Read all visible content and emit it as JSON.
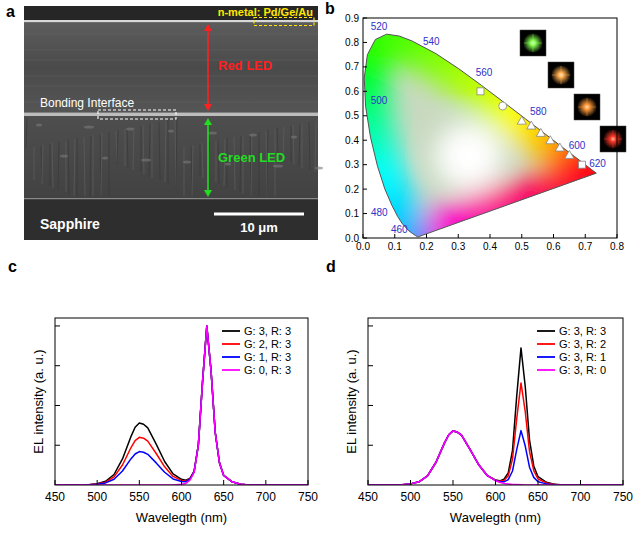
{
  "sem_image": {
    "panel": "a",
    "metal_label": "n-metal: Pd/Ge/Au",
    "red_label": "Red LED",
    "interface_label": "Bonding Interface",
    "green_label": "Green LED",
    "substrate_label": "Sapphire",
    "scale_bar": "10 μm"
  },
  "chart_data": [
    {
      "type": "chromaticity",
      "panel": "b",
      "xlim": [
        0,
        0.8
      ],
      "xticks": [
        {
          "value": 0,
          "label": "0.0"
        },
        0.1,
        0.2,
        0.3,
        0.4,
        0.5,
        0.6,
        0.7,
        0.8
      ],
      "ylim": [
        0,
        0.9
      ],
      "yticks": [
        {
          "value": 0,
          "label": "0.0"
        },
        0.1,
        0.2,
        0.3,
        0.4,
        0.5,
        0.6,
        0.7,
        0.8,
        0.9
      ],
      "locus": {
        "wavelengths": [
          380,
          420,
          440,
          450,
          460,
          470,
          475,
          480,
          485,
          490,
          495,
          500,
          505,
          510,
          515,
          520,
          525,
          530,
          540,
          550,
          560,
          570,
          580,
          590,
          600,
          610,
          620,
          640,
          700
        ],
        "x": [
          0.1741,
          0.1714,
          0.1644,
          0.1566,
          0.144,
          0.1241,
          0.1096,
          0.0913,
          0.0687,
          0.0454,
          0.0235,
          0.0082,
          0.0039,
          0.0139,
          0.0389,
          0.0743,
          0.1142,
          0.1547,
          0.2296,
          0.3016,
          0.3731,
          0.4441,
          0.5125,
          0.5752,
          0.627,
          0.6658,
          0.6915,
          0.719,
          0.7347
        ],
        "y": [
          0.005,
          0.0051,
          0.0109,
          0.0177,
          0.0297,
          0.0578,
          0.0868,
          0.1327,
          0.2007,
          0.295,
          0.4127,
          0.5384,
          0.6548,
          0.7502,
          0.812,
          0.8338,
          0.8262,
          0.8059,
          0.7543,
          0.6923,
          0.6245,
          0.5547,
          0.4866,
          0.4242,
          0.3725,
          0.334,
          0.3083,
          0.2809,
          0.2653
        ],
        "labels": [
          null,
          null,
          null,
          null,
          460,
          null,
          null,
          480,
          null,
          null,
          null,
          500,
          null,
          null,
          null,
          520,
          null,
          null,
          540,
          null,
          560,
          null,
          580,
          null,
          600,
          null,
          620,
          null,
          null
        ]
      },
      "series": [
        {
          "marker": "square",
          "x": [
            0.37,
            0.69
          ],
          "values": [
            0.6,
            0.3
          ]
        },
        {
          "marker": "circle",
          "x": [
            0.44
          ],
          "values": [
            0.54
          ]
        },
        {
          "marker": "triangle",
          "x": [
            0.5,
            0.53,
            0.56,
            0.59,
            0.62,
            0.65
          ],
          "values": [
            0.48,
            0.46,
            0.43,
            0.4,
            0.37,
            0.34
          ]
        }
      ]
    },
    {
      "type": "line",
      "panel": "c",
      "x_label": "Wavelegth (nm)",
      "y_label": "EL intensity (a. u.)",
      "x": [
        450,
        460,
        470,
        480,
        490,
        500,
        510,
        520,
        530,
        540,
        545,
        550,
        555,
        560,
        570,
        580,
        590,
        600,
        605,
        610,
        615,
        620,
        625,
        630,
        635,
        640,
        645,
        650,
        660,
        670,
        680,
        690,
        700,
        720,
        750
      ],
      "xlim": [
        450,
        750
      ],
      "xticks": [
        450,
        500,
        550,
        600,
        650,
        700,
        750
      ],
      "ylim": [
        0,
        1.05
      ],
      "yticks": [
        0.25,
        0.5,
        0.75,
        1.0
      ],
      "tick_labels": "x",
      "legend": "upper right",
      "series": [
        {
          "name": "G: 3, R: 3",
          "color": "#000000",
          "values": [
            0,
            0,
            0,
            0,
            0.002,
            0.008,
            0.023,
            0.066,
            0.164,
            0.304,
            0.363,
            0.39,
            0.382,
            0.359,
            0.257,
            0.148,
            0.07,
            0.036,
            0.03,
            0.042,
            0.088,
            0.254,
            0.654,
            1.0,
            0.72,
            0.33,
            0.14,
            0.06,
            0.02,
            0.005,
            0,
            0,
            0,
            0,
            0
          ]
        },
        {
          "name": "G: 2, R: 3",
          "color": "#ff0000",
          "values": [
            0,
            0,
            0,
            0,
            0.002,
            0.006,
            0.018,
            0.051,
            0.126,
            0.234,
            0.279,
            0.3,
            0.294,
            0.276,
            0.198,
            0.114,
            0.054,
            0.029,
            0.025,
            0.039,
            0.086,
            0.253,
            0.653,
            1.0,
            0.72,
            0.33,
            0.14,
            0.06,
            0.02,
            0.005,
            0,
            0,
            0,
            0,
            0
          ]
        },
        {
          "name": "G: 1, R: 3",
          "color": "#0000ff",
          "values": [
            0,
            0,
            0,
            0,
            0.001,
            0.004,
            0.013,
            0.036,
            0.088,
            0.164,
            0.195,
            0.21,
            0.206,
            0.193,
            0.139,
            0.08,
            0.038,
            0.022,
            0.021,
            0.036,
            0.084,
            0.252,
            0.652,
            1.0,
            0.72,
            0.33,
            0.14,
            0.06,
            0.02,
            0.005,
            0,
            0,
            0,
            0,
            0
          ]
        },
        {
          "name": "G: 0, R: 3",
          "color": "#ff00ff",
          "values": [
            0,
            0,
            0,
            0,
            0,
            0,
            0,
            0,
            0,
            0,
            0,
            0,
            0,
            0,
            0,
            0,
            0,
            0.005,
            0.01,
            0.03,
            0.08,
            0.25,
            0.65,
            1.0,
            0.72,
            0.33,
            0.14,
            0.06,
            0.02,
            0.005,
            0,
            0,
            0,
            0,
            0
          ]
        }
      ]
    },
    {
      "type": "line",
      "panel": "d",
      "x_label": "Wavelegth (nm)",
      "y_label": "EL intensity (a. u.)",
      "x": [
        450,
        460,
        470,
        480,
        490,
        500,
        510,
        520,
        530,
        540,
        545,
        550,
        555,
        560,
        570,
        580,
        590,
        600,
        605,
        610,
        615,
        620,
        625,
        630,
        635,
        640,
        645,
        650,
        660,
        670,
        680,
        690,
        700,
        720,
        750
      ],
      "xlim": [
        450,
        750
      ],
      "xticks": [
        450,
        500,
        550,
        600,
        650,
        700,
        750
      ],
      "ylim": [
        0,
        1.05
      ],
      "yticks": [
        0.25,
        0.5,
        0.75,
        1.0
      ],
      "tick_labels": "x",
      "legend": "upper right",
      "series": [
        {
          "name": "G: 3, R: 3",
          "color": "#000000",
          "values": [
            0,
            0,
            0,
            0,
            0.002,
            0.007,
            0.02,
            0.058,
            0.143,
            0.265,
            0.316,
            0.34,
            0.333,
            0.313,
            0.224,
            0.129,
            0.061,
            0.031,
            0.026,
            0.036,
            0.076,
            0.218,
            0.562,
            0.862,
            0.619,
            0.284,
            0.12,
            0.052,
            0.017,
            0.004,
            0,
            0,
            0,
            0,
            0
          ]
        },
        {
          "name": "G: 3, R: 2",
          "color": "#ff0000",
          "values": [
            0,
            0,
            0,
            0,
            0.002,
            0.007,
            0.02,
            0.058,
            0.143,
            0.265,
            0.316,
            0.34,
            0.333,
            0.313,
            0.224,
            0.129,
            0.061,
            0.03,
            0.023,
            0.029,
            0.058,
            0.163,
            0.419,
            0.642,
            0.461,
            0.211,
            0.09,
            0.038,
            0.013,
            0.003,
            0,
            0,
            0,
            0,
            0
          ]
        },
        {
          "name": "G: 3, R: 1",
          "color": "#0000ff",
          "values": [
            0,
            0,
            0,
            0,
            0.002,
            0.007,
            0.02,
            0.058,
            0.143,
            0.265,
            0.316,
            0.34,
            0.333,
            0.313,
            0.224,
            0.129,
            0.061,
            0.029,
            0.02,
            0.02,
            0.034,
            0.088,
            0.224,
            0.342,
            0.245,
            0.112,
            0.048,
            0.02,
            0.007,
            0.002,
            0,
            0,
            0,
            0,
            0
          ]
        },
        {
          "name": "G: 3, R: 0",
          "color": "#ff00ff",
          "values": [
            0,
            0,
            0,
            0,
            0.002,
            0.007,
            0.02,
            0.058,
            0.143,
            0.265,
            0.316,
            0.34,
            0.333,
            0.313,
            0.224,
            0.129,
            0.061,
            0.027,
            0.017,
            0.01,
            0.007,
            0.003,
            0.003,
            0.002,
            0,
            0,
            0,
            0,
            0,
            0,
            0,
            0,
            0,
            0,
            0
          ]
        }
      ]
    }
  ]
}
